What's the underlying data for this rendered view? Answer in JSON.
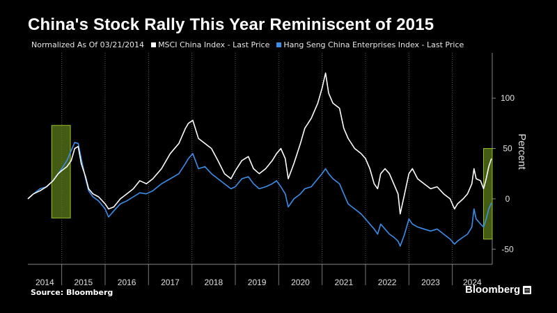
{
  "header": {
    "title": "China's Stock Rally This Year Reminiscent of 2015",
    "note": "Normalized As Of 03/21/2014"
  },
  "footer": {
    "source": "Source: Bloomberg",
    "brand": "Bloomberg"
  },
  "colors": {
    "background": "#000000",
    "series1": "#ffffff",
    "series2": "#3d8ee8",
    "highlight": "#5a7a1a",
    "highlight_border": "#9bbf2e",
    "grid": "#5a5a5a"
  },
  "chart_data": {
    "type": "line",
    "title": "China's Stock Rally This Year Reminiscent of 2015",
    "xlabel": "",
    "ylabel": "Percent",
    "x_tick_labels": [
      "2014",
      "2015",
      "2016",
      "2017",
      "2018",
      "2019",
      "2020",
      "2021",
      "2022",
      "2023",
      "2024"
    ],
    "x_range": [
      2014.22,
      2024.92
    ],
    "ylim": [
      -65,
      145
    ],
    "y_ticks": [
      -50,
      0,
      50,
      100
    ],
    "y_axis_side": "right",
    "grid": "vertical dotted",
    "legend_placement": "top-left",
    "highlight_periods": [
      {
        "x": [
          2014.77,
          2015.2
        ],
        "y": [
          -19,
          73
        ]
      },
      {
        "x": [
          2024.72,
          2024.92
        ],
        "y": [
          -40,
          50
        ]
      }
    ],
    "series": [
      {
        "name": "MSCI China Index - Last Price",
        "color": "#ffffff",
        "points": [
          [
            2014.22,
            0
          ],
          [
            2014.35,
            5
          ],
          [
            2014.5,
            8
          ],
          [
            2014.65,
            12
          ],
          [
            2014.8,
            18
          ],
          [
            2014.92,
            25
          ],
          [
            2015.0,
            28
          ],
          [
            2015.12,
            32
          ],
          [
            2015.22,
            38
          ],
          [
            2015.3,
            50
          ],
          [
            2015.38,
            52
          ],
          [
            2015.45,
            35
          ],
          [
            2015.55,
            22
          ],
          [
            2015.62,
            10
          ],
          [
            2015.72,
            5
          ],
          [
            2015.85,
            2
          ],
          [
            2016.0,
            -5
          ],
          [
            2016.08,
            -10
          ],
          [
            2016.2,
            -8
          ],
          [
            2016.35,
            0
          ],
          [
            2016.5,
            5
          ],
          [
            2016.65,
            10
          ],
          [
            2016.8,
            18
          ],
          [
            2016.95,
            15
          ],
          [
            2017.1,
            20
          ],
          [
            2017.3,
            30
          ],
          [
            2017.5,
            45
          ],
          [
            2017.7,
            55
          ],
          [
            2017.85,
            70
          ],
          [
            2017.92,
            75
          ],
          [
            2018.02,
            78
          ],
          [
            2018.15,
            60
          ],
          [
            2018.3,
            55
          ],
          [
            2018.45,
            50
          ],
          [
            2018.6,
            38
          ],
          [
            2018.75,
            25
          ],
          [
            2018.9,
            20
          ],
          [
            2019.0,
            28
          ],
          [
            2019.15,
            38
          ],
          [
            2019.3,
            42
          ],
          [
            2019.42,
            30
          ],
          [
            2019.55,
            25
          ],
          [
            2019.7,
            30
          ],
          [
            2019.85,
            38
          ],
          [
            2019.95,
            45
          ],
          [
            2020.05,
            50
          ],
          [
            2020.15,
            40
          ],
          [
            2020.22,
            20
          ],
          [
            2020.35,
            35
          ],
          [
            2020.5,
            55
          ],
          [
            2020.6,
            70
          ],
          [
            2020.75,
            80
          ],
          [
            2020.9,
            95
          ],
          [
            2021.0,
            110
          ],
          [
            2021.08,
            125
          ],
          [
            2021.15,
            105
          ],
          [
            2021.25,
            95
          ],
          [
            2021.4,
            90
          ],
          [
            2021.5,
            70
          ],
          [
            2021.6,
            60
          ],
          [
            2021.75,
            50
          ],
          [
            2021.9,
            45
          ],
          [
            2022.0,
            40
          ],
          [
            2022.1,
            30
          ],
          [
            2022.2,
            15
          ],
          [
            2022.28,
            10
          ],
          [
            2022.35,
            25
          ],
          [
            2022.45,
            30
          ],
          [
            2022.55,
            25
          ],
          [
            2022.65,
            15
          ],
          [
            2022.75,
            5
          ],
          [
            2022.8,
            -15
          ],
          [
            2022.9,
            5
          ],
          [
            2023.0,
            25
          ],
          [
            2023.08,
            30
          ],
          [
            2023.2,
            20
          ],
          [
            2023.35,
            15
          ],
          [
            2023.5,
            10
          ],
          [
            2023.65,
            12
          ],
          [
            2023.8,
            5
          ],
          [
            2023.95,
            0
          ],
          [
            2024.05,
            -10
          ],
          [
            2024.12,
            -5
          ],
          [
            2024.25,
            0
          ],
          [
            2024.35,
            5
          ],
          [
            2024.45,
            15
          ],
          [
            2024.5,
            30
          ],
          [
            2024.55,
            20
          ],
          [
            2024.65,
            18
          ],
          [
            2024.72,
            10
          ],
          [
            2024.78,
            20
          ],
          [
            2024.84,
            32
          ],
          [
            2024.9,
            40
          ]
        ]
      },
      {
        "name": "Hang Seng China Enterprises Index - Last Price",
        "color": "#3d8ee8",
        "points": [
          [
            2014.22,
            0
          ],
          [
            2014.35,
            5
          ],
          [
            2014.5,
            10
          ],
          [
            2014.65,
            12
          ],
          [
            2014.8,
            18
          ],
          [
            2014.92,
            25
          ],
          [
            2015.0,
            30
          ],
          [
            2015.12,
            38
          ],
          [
            2015.22,
            48
          ],
          [
            2015.3,
            56
          ],
          [
            2015.38,
            55
          ],
          [
            2015.45,
            40
          ],
          [
            2015.55,
            20
          ],
          [
            2015.62,
            8
          ],
          [
            2015.72,
            2
          ],
          [
            2015.85,
            -2
          ],
          [
            2016.0,
            -10
          ],
          [
            2016.08,
            -18
          ],
          [
            2016.2,
            -12
          ],
          [
            2016.35,
            -5
          ],
          [
            2016.5,
            -2
          ],
          [
            2016.65,
            2
          ],
          [
            2016.8,
            6
          ],
          [
            2016.95,
            5
          ],
          [
            2017.1,
            8
          ],
          [
            2017.3,
            15
          ],
          [
            2017.5,
            20
          ],
          [
            2017.7,
            25
          ],
          [
            2017.85,
            35
          ],
          [
            2017.92,
            40
          ],
          [
            2018.02,
            45
          ],
          [
            2018.15,
            30
          ],
          [
            2018.3,
            32
          ],
          [
            2018.45,
            25
          ],
          [
            2018.6,
            20
          ],
          [
            2018.75,
            15
          ],
          [
            2018.9,
            10
          ],
          [
            2019.0,
            12
          ],
          [
            2019.15,
            20
          ],
          [
            2019.3,
            22
          ],
          [
            2019.42,
            15
          ],
          [
            2019.55,
            10
          ],
          [
            2019.7,
            12
          ],
          [
            2019.85,
            15
          ],
          [
            2019.95,
            18
          ],
          [
            2020.05,
            12
          ],
          [
            2020.15,
            5
          ],
          [
            2020.22,
            -8
          ],
          [
            2020.35,
            0
          ],
          [
            2020.5,
            5
          ],
          [
            2020.6,
            10
          ],
          [
            2020.75,
            12
          ],
          [
            2020.9,
            20
          ],
          [
            2021.0,
            25
          ],
          [
            2021.08,
            30
          ],
          [
            2021.15,
            25
          ],
          [
            2021.25,
            20
          ],
          [
            2021.4,
            15
          ],
          [
            2021.5,
            5
          ],
          [
            2021.6,
            -5
          ],
          [
            2021.75,
            -10
          ],
          [
            2021.9,
            -15
          ],
          [
            2022.0,
            -20
          ],
          [
            2022.1,
            -25
          ],
          [
            2022.2,
            -30
          ],
          [
            2022.28,
            -35
          ],
          [
            2022.35,
            -25
          ],
          [
            2022.45,
            -30
          ],
          [
            2022.55,
            -35
          ],
          [
            2022.65,
            -38
          ],
          [
            2022.75,
            -42
          ],
          [
            2022.8,
            -47
          ],
          [
            2022.9,
            -35
          ],
          [
            2023.0,
            -20
          ],
          [
            2023.08,
            -25
          ],
          [
            2023.2,
            -28
          ],
          [
            2023.35,
            -30
          ],
          [
            2023.5,
            -32
          ],
          [
            2023.65,
            -30
          ],
          [
            2023.8,
            -35
          ],
          [
            2023.95,
            -40
          ],
          [
            2024.05,
            -45
          ],
          [
            2024.12,
            -42
          ],
          [
            2024.25,
            -38
          ],
          [
            2024.35,
            -35
          ],
          [
            2024.45,
            -28
          ],
          [
            2024.5,
            -10
          ],
          [
            2024.55,
            -20
          ],
          [
            2024.65,
            -25
          ],
          [
            2024.72,
            -28
          ],
          [
            2024.78,
            -20
          ],
          [
            2024.84,
            -10
          ],
          [
            2024.9,
            -4
          ]
        ]
      }
    ]
  }
}
